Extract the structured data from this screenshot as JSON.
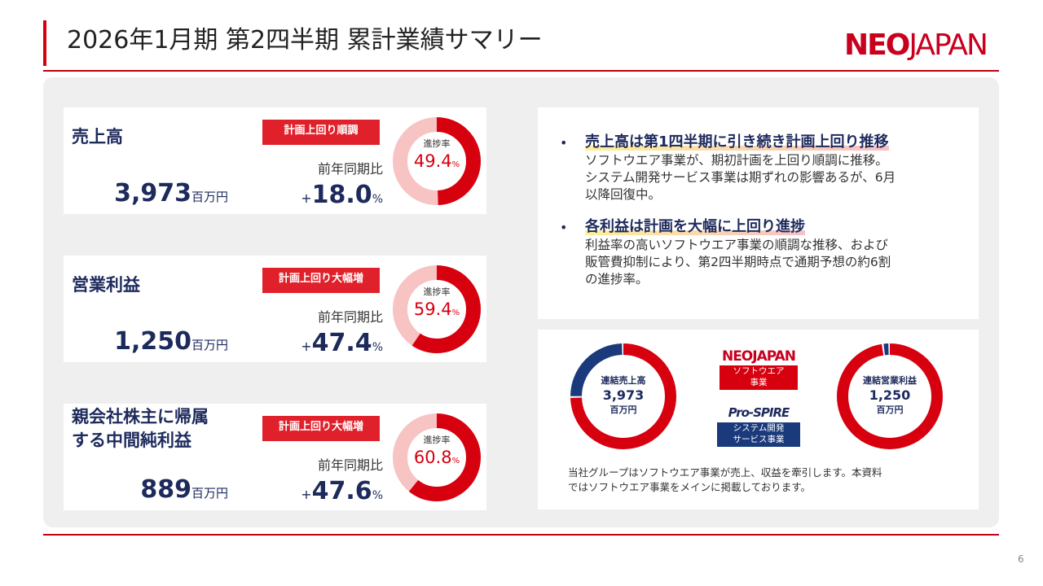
{
  "header": {
    "title": "2026年1月期 第2四半期 累計業績サマリー",
    "logo_neo": "NEO",
    "logo_japan": "JAPAN",
    "page_number": "6"
  },
  "kpis": [
    {
      "label": "売上高",
      "badge": "計画上回り順調",
      "value": "3,973",
      "unit": "百万円",
      "yoy_label": "前年同期比",
      "yoy_sign": "+",
      "yoy_value": "18.0",
      "yoy_unit": "%",
      "progress_label": "進捗率",
      "progress": 49.4,
      "progress_unit": "%"
    },
    {
      "label": "営業利益",
      "badge": "計画上回り大幅増",
      "value": "1,250",
      "unit": "百万円",
      "yoy_label": "前年同期比",
      "yoy_sign": "+",
      "yoy_value": "47.4",
      "yoy_unit": "%",
      "progress_label": "進捗率",
      "progress": 59.4,
      "progress_unit": "%"
    },
    {
      "label": "親会社株主に帰属\nする中間純利益",
      "badge": "計画上回り大幅増",
      "value": "889",
      "unit": "百万円",
      "yoy_label": "前年同期比",
      "yoy_sign": "+",
      "yoy_value": "47.6",
      "yoy_unit": "%",
      "progress_label": "進捗率",
      "progress": 60.8,
      "progress_unit": "%"
    }
  ],
  "summary": [
    {
      "heading": "売上高は第1四半期に引き続き計画上回り推移",
      "lines": [
        "ソフトウエア事業が、期初計画を上回り順調に推移。",
        "システム開発サービス事業は期ずれの影響あるが、6月",
        "以降回復中。"
      ]
    },
    {
      "heading": "各利益は計画を大幅に上回り進捗",
      "lines": [
        "利益率の高いソフトウエア事業の順調な推移、および",
        "販管費抑制により、第2四半期時点で通期予想の約6割",
        "の進捗率。"
      ]
    }
  ],
  "segments": {
    "legend": [
      {
        "logo": "NEOJAPAN",
        "name": "ソフトウエア\n事業",
        "color": "#d7000f"
      },
      {
        "logo": "Pro-SPIRE",
        "name": "システム開発\nサービス事業",
        "color": "#1b3a7c"
      }
    ],
    "donuts": [
      {
        "label": "連結売上高",
        "value": "3,973",
        "unit": "百万円",
        "shares": [
          75,
          25
        ]
      },
      {
        "label": "連結営業利益",
        "value": "1,250",
        "unit": "百万円",
        "shares": [
          98,
          2
        ]
      }
    ],
    "note": [
      "当社グループはソフトウエア事業が売上、収益を牽引します。本資料",
      "ではソフトウエア事業をメインに掲載しております。"
    ]
  }
}
